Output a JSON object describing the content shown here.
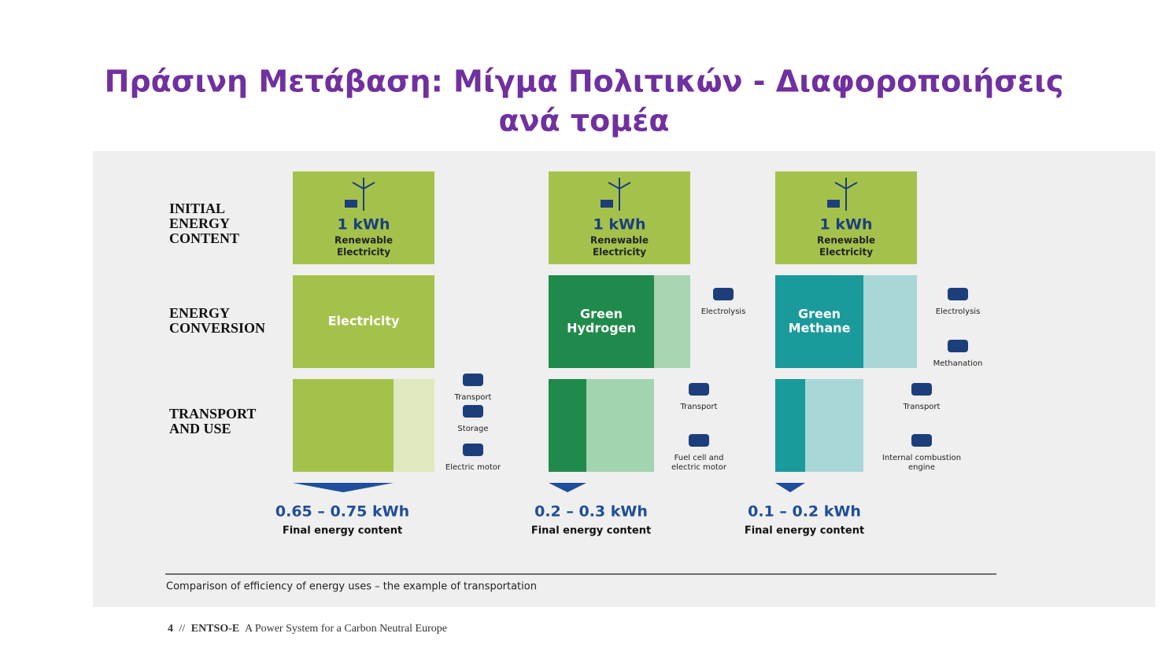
{
  "title": {
    "lines": [
      "Πράσινη Μετάβαση: Μίγμα Πολιτικών - Διαφοροποιήσεις",
      "ανά τομέα"
    ]
  },
  "row_labels": [
    {
      "lines": [
        "INITIAL",
        "ENERGY",
        "CONTENT"
      ]
    },
    {
      "lines": [
        "ENERGY",
        "CONVERSION"
      ]
    },
    {
      "lines": [
        "TRANSPORT",
        "AND USE"
      ]
    }
  ],
  "columns": [
    {
      "source": {
        "amount": "1 kWh",
        "lines": [
          "Renewable",
          "Electricity"
        ]
      },
      "conversion": {
        "lines": [
          "Electricity"
        ]
      },
      "conversion_steps": [],
      "use_steps": [
        {
          "lines": [
            "Transport"
          ]
        },
        {
          "lines": [
            "Storage"
          ]
        },
        {
          "lines": [
            "Electric motor"
          ]
        }
      ],
      "result": {
        "value": "0.65 – 0.75 kWh",
        "label": "Final energy content"
      }
    },
    {
      "source": {
        "amount": "1 kWh",
        "lines": [
          "Renewable",
          "Electricity"
        ]
      },
      "conversion": {
        "lines": [
          "Green",
          "Hydrogen"
        ]
      },
      "conversion_steps": [
        {
          "lines": [
            "Electrolysis"
          ]
        }
      ],
      "use_steps": [
        {
          "lines": [
            "Transport"
          ]
        },
        {
          "lines": [
            "Fuel cell and",
            "electric motor"
          ]
        }
      ],
      "result": {
        "value": "0.2 – 0.3 kWh",
        "label": "Final energy content"
      }
    },
    {
      "source": {
        "amount": "1 kWh",
        "lines": [
          "Renewable",
          "Electricity"
        ]
      },
      "conversion": {
        "lines": [
          "Green",
          "Methane"
        ]
      },
      "conversion_steps": [
        {
          "lines": [
            "Electrolysis"
          ]
        },
        {
          "lines": [
            "Methanation"
          ]
        }
      ],
      "use_steps": [
        {
          "lines": [
            "Transport"
          ]
        },
        {
          "lines": [
            "Internal combustion",
            "engine"
          ]
        }
      ],
      "result": {
        "value": "0.1 – 0.2 kWh",
        "label": "Final energy content"
      }
    }
  ],
  "caption": "Comparison of efficiency of energy uses – the example of transportation",
  "footer": {
    "page": "4",
    "separator": "//",
    "brand": "ENTSO-E",
    "text": "A Power System for a Carbon Neutral Europe"
  }
}
